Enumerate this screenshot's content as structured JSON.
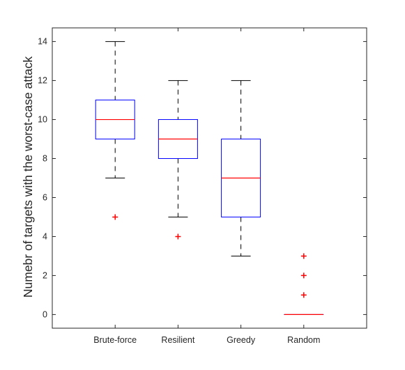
{
  "chart_data": {
    "type": "boxplot",
    "title": "",
    "xlabel": "",
    "ylabel": "Numebr of targets with the worst-case attack",
    "ylim": [
      -0.7,
      14.7
    ],
    "y_ticks": [
      0,
      2,
      4,
      6,
      8,
      10,
      12,
      14
    ],
    "grid": false,
    "categories": [
      "Brute-force",
      "Resilient",
      "Greedy",
      "Random"
    ],
    "boxes": [
      {
        "category": "Brute-force",
        "whisker_low": 7,
        "q1": 9,
        "median": 10,
        "q3": 11,
        "whisker_high": 14,
        "outliers": [
          5
        ]
      },
      {
        "category": "Resilient",
        "whisker_low": 5,
        "q1": 8,
        "median": 9,
        "q3": 10,
        "whisker_high": 12,
        "outliers": [
          4
        ]
      },
      {
        "category": "Greedy",
        "whisker_low": 3,
        "q1": 5,
        "median": 7,
        "q3": 9,
        "whisker_high": 12,
        "outliers": []
      },
      {
        "category": "Random",
        "whisker_low": 0,
        "q1": 0,
        "median": 0,
        "q3": 0,
        "whisker_high": 0,
        "outliers": [
          1,
          2,
          3
        ]
      }
    ],
    "colors": {
      "box": "#0000ff",
      "median": "#ff0000",
      "whisker": "#000000",
      "outlier": "#ff0000",
      "axis": "#262626"
    }
  }
}
